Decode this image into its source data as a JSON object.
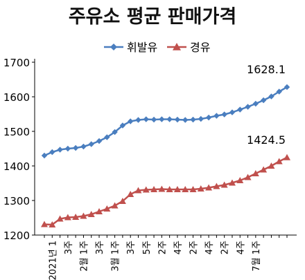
{
  "chart_data": {
    "type": "line",
    "title": "주유소 평균 판매가격",
    "legend_position": "top",
    "grid": false,
    "ylim": [
      1200,
      1700
    ],
    "y_ticks": [
      1200,
      1300,
      1400,
      1500,
      1600,
      1700
    ],
    "x_tick_labels": [
      "2021년 1",
      "3주",
      "2월 1주",
      "3주",
      "3월 1주",
      "3주",
      "5주",
      "2주",
      "4주",
      "2주",
      "4주",
      "2주",
      "4주",
      "7월 1주"
    ],
    "series": [
      {
        "name": "휘발유",
        "color": "#4a7ebf",
        "marker": "diamond",
        "values": [
          1430,
          1440,
          1447,
          1450,
          1452,
          1456,
          1463,
          1472,
          1483,
          1498,
          1517,
          1529,
          1533,
          1535,
          1534,
          1535,
          1535,
          1534,
          1533,
          1534,
          1536,
          1540,
          1545,
          1549,
          1555,
          1563,
          1571,
          1580,
          1590,
          1601,
          1615,
          1628.1
        ]
      },
      {
        "name": "경유",
        "color": "#c0504d",
        "marker": "triangle",
        "values": [
          1231,
          1230,
          1247,
          1251,
          1252,
          1255,
          1260,
          1268,
          1276,
          1285,
          1298,
          1318,
          1329,
          1331,
          1332,
          1333,
          1332,
          1332,
          1332,
          1332,
          1334,
          1337,
          1341,
          1345,
          1351,
          1358,
          1367,
          1378,
          1389,
          1400,
          1413,
          1424.5
        ]
      }
    ],
    "annotations": [
      {
        "series": 0,
        "text": "1628.1"
      },
      {
        "series": 1,
        "text": "1424.5"
      }
    ]
  }
}
